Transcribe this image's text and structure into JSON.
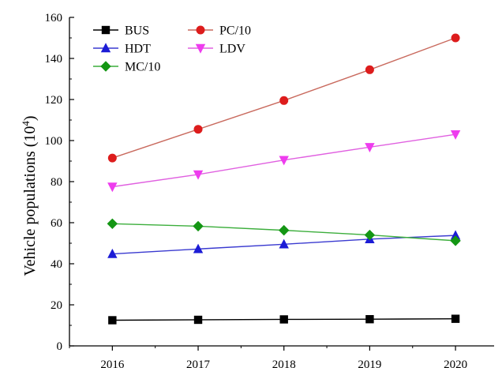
{
  "chart_data": {
    "type": "line",
    "title": "",
    "xlabel": "",
    "ylabel": "Vehicle populations (10",
    "ylabel_sup": "4",
    "ylabel_close": ")",
    "x": [
      2016,
      2017,
      2018,
      2019,
      2020
    ],
    "x_tick_labels": [
      "2016",
      "2017",
      "2018",
      "2019",
      "2020"
    ],
    "y_ticks": [
      0,
      20,
      40,
      60,
      80,
      100,
      120,
      140,
      160
    ],
    "ylim": [
      0,
      160
    ],
    "grid": false,
    "legend_position": "top-left",
    "series": [
      {
        "name": "BUS",
        "values": [
          12.5,
          12.7,
          12.9,
          13.0,
          13.2
        ],
        "color": "#000000",
        "line_color": "#000000",
        "marker": "square"
      },
      {
        "name": "PC/10",
        "values": [
          91.5,
          105.5,
          119.5,
          134.5,
          150.0
        ],
        "color": "#dd1c1c",
        "line_color": "#c96a5e",
        "marker": "circle"
      },
      {
        "name": "HDT",
        "values": [
          44.8,
          47.2,
          49.5,
          52.0,
          53.8
        ],
        "color": "#1c1cd6",
        "line_color": "#3a3ad0",
        "marker": "triangle-up"
      },
      {
        "name": "LDV",
        "values": [
          77.5,
          83.5,
          90.5,
          96.8,
          103.0
        ],
        "color": "#ee3cee",
        "line_color": "#e060e0",
        "marker": "triangle-down"
      },
      {
        "name": "MC/10",
        "values": [
          59.5,
          58.3,
          56.3,
          54.0,
          51.2
        ],
        "color": "#149614",
        "line_color": "#3cae3c",
        "marker": "diamond"
      }
    ]
  }
}
